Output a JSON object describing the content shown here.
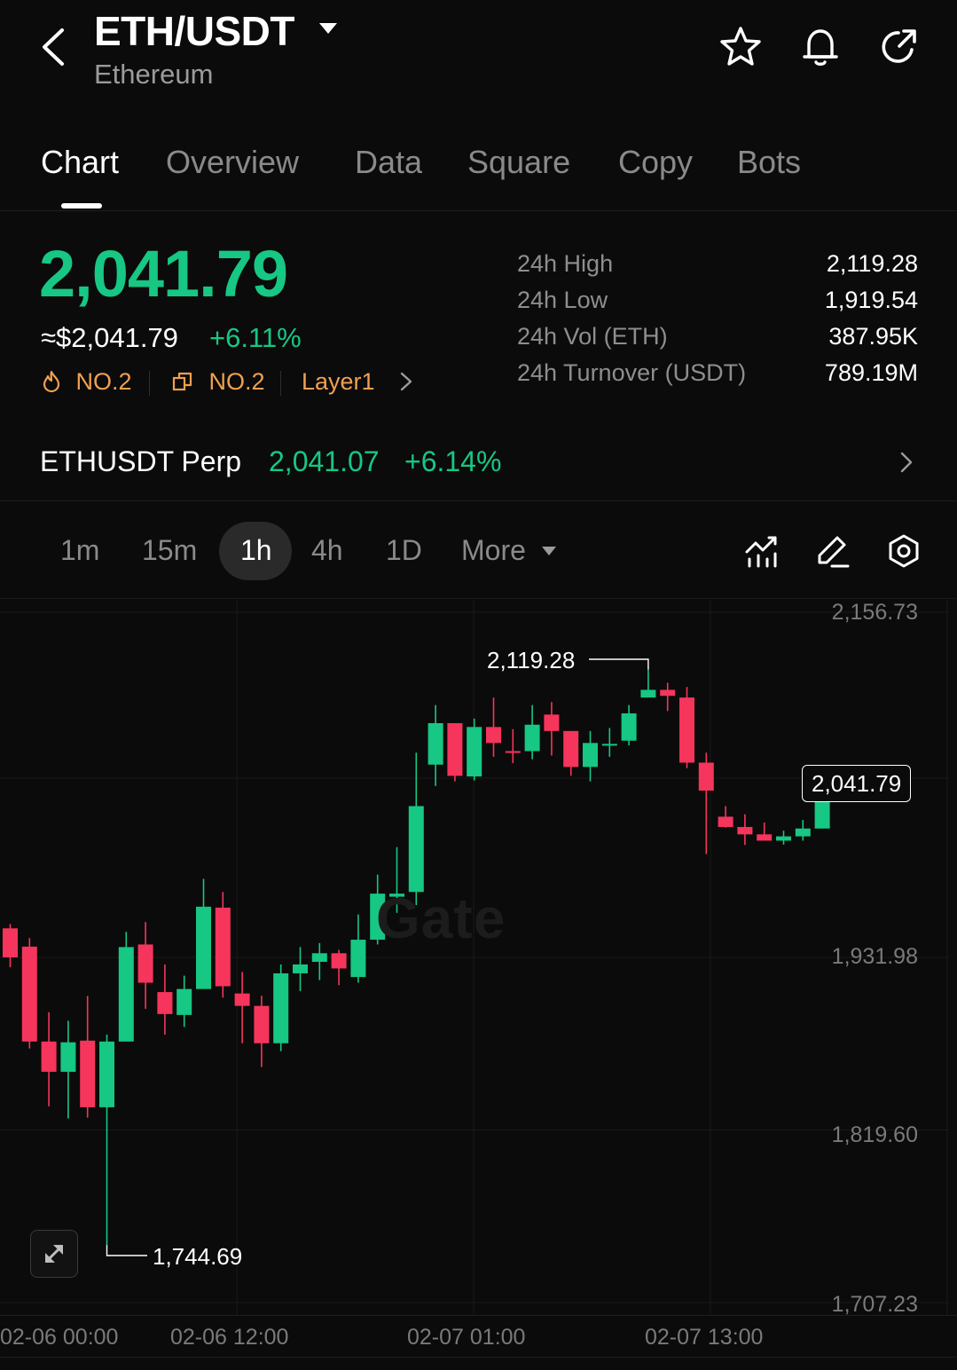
{
  "header": {
    "pair": "ETH/USDT",
    "name": "Ethereum",
    "icons": [
      "back-icon",
      "caret-down-icon",
      "star-icon",
      "bell-icon",
      "share-icon"
    ]
  },
  "tabs": [
    {
      "label": "Chart",
      "active": true
    },
    {
      "label": "Overview"
    },
    {
      "label": "Data"
    },
    {
      "label": "Square"
    },
    {
      "label": "Copy"
    },
    {
      "label": "Bots"
    }
  ],
  "price": {
    "last": "2,041.79",
    "usd": "≈$2,041.79",
    "change": "+6.11%",
    "tags": [
      {
        "icon": "flame-icon",
        "label": "NO.2"
      },
      {
        "icon": "cube-icon",
        "label": "NO.2"
      },
      {
        "label": "Layer1"
      }
    ]
  },
  "stats": [
    {
      "label": "24h  High",
      "value": "2,119.28"
    },
    {
      "label": "24h  Low",
      "value": "1,919.54"
    },
    {
      "label": "24h  Vol (ETH)",
      "value": "387.95K"
    },
    {
      "label": "24h  Turnover (USDT)",
      "value": "789.19M"
    }
  ],
  "perp": {
    "name": "ETHUSDT Perp",
    "price": "2,041.07",
    "change": "+6.14%"
  },
  "intervals": [
    {
      "label": "1m"
    },
    {
      "label": "15m"
    },
    {
      "label": "1h",
      "active": true
    },
    {
      "label": "4h"
    },
    {
      "label": "1D"
    },
    {
      "label": "More"
    }
  ],
  "colors": {
    "up": "#17c784",
    "down": "#f6355c",
    "background": "#0b0b0b",
    "tag": "#f0a050"
  },
  "chart_data": {
    "type": "candlestick",
    "y_axis_labels": [
      "2,156.73",
      "1,931.98",
      "1,819.60",
      "1,707.23"
    ],
    "ylim": [
      1707.23,
      2156.73
    ],
    "x_axis_labels": [
      "02-06 00:00",
      "02-06 12:00",
      "02-07 01:00",
      "02-07 13:00"
    ],
    "high_label": "2,119.28",
    "low_label": "1,744.69",
    "last_price_label": "2,041.79",
    "candles": [
      {
        "o": 1950.9,
        "h": 1953.7,
        "l": 1925.6,
        "c": 1932.0
      },
      {
        "o": 1939.0,
        "h": 1944.6,
        "l": 1872.7,
        "c": 1877.2
      },
      {
        "o": 1877.2,
        "h": 1896.3,
        "l": 1835.0,
        "c": 1857.5
      },
      {
        "o": 1857.5,
        "h": 1890.7,
        "l": 1827.1,
        "c": 1876.7
      },
      {
        "o": 1877.8,
        "h": 1906.9,
        "l": 1827.6,
        "c": 1834.4
      },
      {
        "o": 1834.4,
        "h": 1881.7,
        "l": 1744.7,
        "c": 1877.2
      },
      {
        "o": 1877.2,
        "h": 1948.6,
        "l": 1877.2,
        "c": 1938.7
      },
      {
        "o": 1940.4,
        "h": 1955.0,
        "l": 1898.5,
        "c": 1915.5
      },
      {
        "o": 1909.4,
        "h": 1927.4,
        "l": 1881.7,
        "c": 1895.1
      },
      {
        "o": 1894.5,
        "h": 1920.1,
        "l": 1886.7,
        "c": 1911.4
      },
      {
        "o": 1911.4,
        "h": 1983.1,
        "l": 1911.4,
        "c": 1965.0
      },
      {
        "o": 1964.4,
        "h": 1974.6,
        "l": 1905.8,
        "c": 1913.2
      },
      {
        "o": 1908.5,
        "h": 1922.5,
        "l": 1876.1,
        "c": 1900.4
      },
      {
        "o": 1900.4,
        "h": 1907.0,
        "l": 1860.6,
        "c": 1876.1
      },
      {
        "o": 1876.1,
        "h": 1927.4,
        "l": 1870.9,
        "c": 1921.6
      },
      {
        "o": 1921.6,
        "h": 1938.7,
        "l": 1910.0,
        "c": 1927.4
      },
      {
        "o": 1929.1,
        "h": 1941.3,
        "l": 1917.2,
        "c": 1934.7
      },
      {
        "o": 1934.7,
        "h": 1936.9,
        "l": 1913.9,
        "c": 1924.8
      },
      {
        "o": 1919.2,
        "h": 1959.9,
        "l": 1915.5,
        "c": 1943.5
      },
      {
        "o": 1943.5,
        "h": 1985.9,
        "l": 1940.4,
        "c": 1973.5
      },
      {
        "o": 1971.5,
        "h": 2003.8,
        "l": 1961.0,
        "c": 1973.5
      },
      {
        "o": 1974.6,
        "h": 2065.3,
        "l": 1966.1,
        "c": 2030.5
      },
      {
        "o": 2057.5,
        "h": 2096.3,
        "l": 2043.6,
        "c": 2084.5
      },
      {
        "o": 2084.5,
        "h": 2084.5,
        "l": 2046.6,
        "c": 2050.2
      },
      {
        "o": 2049.8,
        "h": 2087.5,
        "l": 2047.2,
        "c": 2082.0
      },
      {
        "o": 2082.0,
        "h": 2101.2,
        "l": 2062.6,
        "c": 2071.6
      },
      {
        "o": 2066.3,
        "h": 2080.6,
        "l": 2058.5,
        "c": 2065.9
      },
      {
        "o": 2066.3,
        "h": 2096.3,
        "l": 2061.0,
        "c": 2083.5
      },
      {
        "o": 2090.1,
        "h": 2098.2,
        "l": 2063.4,
        "c": 2079.4
      },
      {
        "o": 2079.4,
        "h": 2079.4,
        "l": 2050.2,
        "c": 2056.0
      },
      {
        "o": 2056.0,
        "h": 2079.4,
        "l": 2046.6,
        "c": 2071.6
      },
      {
        "o": 2070.1,
        "h": 2081.3,
        "l": 2062.6,
        "c": 2071.0
      },
      {
        "o": 2073.1,
        "h": 2096.3,
        "l": 2070.1,
        "c": 2090.9
      },
      {
        "o": 2101.2,
        "h": 2119.3,
        "l": 2101.2,
        "c": 2106.2
      },
      {
        "o": 2106.2,
        "h": 2110.8,
        "l": 2092.4,
        "c": 2102.3
      },
      {
        "o": 2101.2,
        "h": 2108.1,
        "l": 2055.2,
        "c": 2058.8
      },
      {
        "o": 2058.8,
        "h": 2065.3,
        "l": 1999.3,
        "c": 2040.6
      },
      {
        "o": 2023.6,
        "h": 2030.5,
        "l": 2016.5,
        "c": 2016.9
      },
      {
        "o": 2016.9,
        "h": 2025.2,
        "l": 2005.2,
        "c": 2012.1
      },
      {
        "o": 2012.1,
        "h": 2019.8,
        "l": 2008.0,
        "c": 2008.0
      },
      {
        "o": 2008.0,
        "h": 2014.5,
        "l": 2005.4,
        "c": 2010.8
      },
      {
        "o": 2010.8,
        "h": 2021.5,
        "l": 2008.0,
        "c": 2015.9
      },
      {
        "o": 2015.9,
        "h": 2050.0,
        "l": 2015.9,
        "c": 2036.1
      }
    ]
  }
}
